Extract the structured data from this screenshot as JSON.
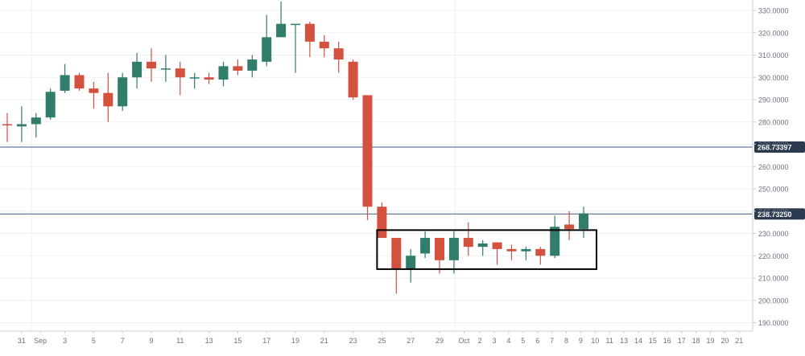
{
  "chart_data": {
    "type": "candlestick",
    "title": "",
    "xlabel": "",
    "ylabel": "",
    "ylim": [
      183,
      334
    ],
    "grid": true,
    "y_ticks": [
      "330.0000",
      "320.0000",
      "310.0000",
      "300.0000",
      "290.0000",
      "280.0000",
      "270.0000",
      "260.0000",
      "250.0000",
      "240.0000",
      "230.0000",
      "220.0000",
      "210.0000",
      "200.0000",
      "190.0000"
    ],
    "x_axis_labels": [
      "31",
      "Sep",
      "3",
      "5",
      "7",
      "9",
      "11",
      "13",
      "15",
      "17",
      "19",
      "21",
      "23",
      "25",
      "27",
      "29",
      "Oct",
      "2",
      "3",
      "4",
      "5",
      "6",
      "7",
      "8",
      "9",
      "10",
      "11",
      "13",
      "14",
      "15",
      "16",
      "17",
      "18",
      "19",
      "20",
      "21"
    ],
    "candles": [
      {
        "date": "Aug 30",
        "open": 279,
        "high": 284,
        "low": 271,
        "close": 278.5
      },
      {
        "date": "Aug 31",
        "open": 278,
        "high": 287,
        "low": 271,
        "close": 279
      },
      {
        "date": "Sep 1",
        "open": 279,
        "high": 284,
        "low": 273,
        "close": 282
      },
      {
        "date": "Sep 2",
        "open": 282,
        "high": 295,
        "low": 281,
        "close": 293.5
      },
      {
        "date": "Sep 3",
        "open": 294,
        "high": 306,
        "low": 293,
        "close": 301
      },
      {
        "date": "Sep 4",
        "open": 301,
        "high": 302,
        "low": 294,
        "close": 295
      },
      {
        "date": "Sep 5",
        "open": 295,
        "high": 298,
        "low": 286,
        "close": 293
      },
      {
        "date": "Sep 6",
        "open": 293,
        "high": 302,
        "low": 280,
        "close": 287
      },
      {
        "date": "Sep 7",
        "open": 287,
        "high": 302,
        "low": 285,
        "close": 300
      },
      {
        "date": "Sep 8",
        "open": 300,
        "high": 311,
        "low": 295,
        "close": 307
      },
      {
        "date": "Sep 9",
        "open": 307,
        "high": 313,
        "low": 298,
        "close": 304
      },
      {
        "date": "Sep 10",
        "open": 304,
        "high": 310,
        "low": 298,
        "close": 304
      },
      {
        "date": "Sep 11",
        "open": 304,
        "high": 307,
        "low": 292,
        "close": 300
      },
      {
        "date": "Sep 12",
        "open": 300,
        "high": 302,
        "low": 295,
        "close": 300
      },
      {
        "date": "Sep 13",
        "open": 300,
        "high": 302,
        "low": 297,
        "close": 299
      },
      {
        "date": "Sep 14",
        "open": 299,
        "high": 307,
        "low": 296,
        "close": 305
      },
      {
        "date": "Sep 15",
        "open": 305,
        "high": 308,
        "low": 301,
        "close": 303
      },
      {
        "date": "Sep 16",
        "open": 303,
        "high": 310,
        "low": 300,
        "close": 308
      },
      {
        "date": "Sep 17",
        "open": 307,
        "high": 328,
        "low": 305,
        "close": 318
      },
      {
        "date": "Sep 18",
        "open": 318,
        "high": 334,
        "low": 318,
        "close": 324
      },
      {
        "date": "Sep 19",
        "open": 324,
        "high": 324,
        "low": 302,
        "close": 324
      },
      {
        "date": "Sep 20",
        "open": 324,
        "high": 325,
        "low": 309,
        "close": 316
      },
      {
        "date": "Sep 21",
        "open": 316,
        "high": 319,
        "low": 309,
        "close": 313
      },
      {
        "date": "Sep 22",
        "open": 313,
        "high": 316,
        "low": 302,
        "close": 308
      },
      {
        "date": "Sep 23",
        "open": 307,
        "high": 308,
        "low": 290,
        "close": 291
      },
      {
        "date": "Sep 24",
        "open": 292,
        "high": 292,
        "low": 236,
        "close": 242
      },
      {
        "date": "Sep 25",
        "open": 242,
        "high": 244,
        "low": 228,
        "close": 228
      },
      {
        "date": "Sep 26",
        "open": 228,
        "high": 228,
        "low": 203,
        "close": 214
      },
      {
        "date": "Sep 27",
        "open": 214,
        "high": 223,
        "low": 208,
        "close": 220
      },
      {
        "date": "Sep 28",
        "open": 221,
        "high": 231,
        "low": 219,
        "close": 228
      },
      {
        "date": "Sep 29",
        "open": 228,
        "high": 228,
        "low": 212,
        "close": 218
      },
      {
        "date": "Sep 30",
        "open": 218,
        "high": 231,
        "low": 212,
        "close": 228
      },
      {
        "date": "Oct 1",
        "open": 228,
        "high": 235,
        "low": 220,
        "close": 224
      },
      {
        "date": "Oct 2",
        "open": 224,
        "high": 227,
        "low": 220,
        "close": 225.5
      },
      {
        "date": "Oct 3",
        "open": 226,
        "high": 226,
        "low": 216,
        "close": 223
      },
      {
        "date": "Oct 4",
        "open": 223,
        "high": 225,
        "low": 218,
        "close": 222
      },
      {
        "date": "Oct 5",
        "open": 222,
        "high": 224,
        "low": 218,
        "close": 223
      },
      {
        "date": "Oct 6",
        "open": 223,
        "high": 224,
        "low": 216,
        "close": 220
      },
      {
        "date": "Oct 7",
        "open": 220,
        "high": 238,
        "low": 219,
        "close": 233
      },
      {
        "date": "Oct 8",
        "open": 234,
        "high": 240,
        "low": 227,
        "close": 232
      },
      {
        "date": "Oct 9",
        "open": 232,
        "high": 242,
        "low": 228,
        "close": 239
      }
    ],
    "horizontal_lines": [
      {
        "label": "268.73397",
        "value": 268.73397
      },
      {
        "label": "238.73250",
        "value": 238.7325
      }
    ],
    "annotation_box": {
      "x_from": "Sep 25",
      "x_to": "Oct 9",
      "y_from": 214,
      "y_to": 231.5
    },
    "colors": {
      "up": "#2f7d6a",
      "down": "#d3513f",
      "line": "#3d5a80",
      "label_bg": "#2b3a4e"
    }
  }
}
